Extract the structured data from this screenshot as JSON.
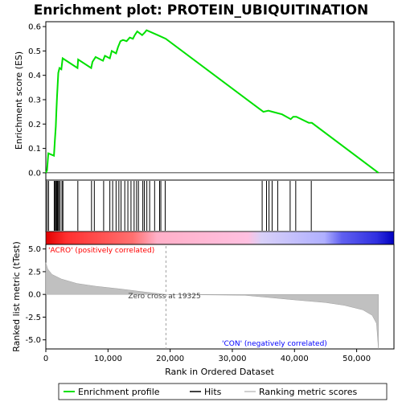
{
  "chart_data": {
    "type": "line",
    "title": "Enrichment plot: PROTEIN_UBIQUITINATION",
    "top_panel": {
      "ylabel": "Enrichment score (ES)",
      "ylim": [
        -0.03,
        0.62
      ],
      "yticks": [
        "0.0",
        "0.1",
        "0.2",
        "0.3",
        "0.4",
        "0.5",
        "0.6"
      ],
      "series": {
        "name": "Enrichment profile",
        "color": "#00e000",
        "points": [
          [
            0,
            0
          ],
          [
            200,
            0.01
          ],
          [
            400,
            0.08
          ],
          [
            1300,
            0.07
          ],
          [
            1450,
            0.13
          ],
          [
            1600,
            0.19
          ],
          [
            1700,
            0.25
          ],
          [
            1800,
            0.31
          ],
          [
            1900,
            0.36
          ],
          [
            2000,
            0.41
          ],
          [
            2200,
            0.43
          ],
          [
            2500,
            0.425
          ],
          [
            2700,
            0.47
          ],
          [
            5100,
            0.43
          ],
          [
            5200,
            0.465
          ],
          [
            7300,
            0.43
          ],
          [
            7500,
            0.455
          ],
          [
            8000,
            0.475
          ],
          [
            9200,
            0.46
          ],
          [
            9500,
            0.48
          ],
          [
            10300,
            0.47
          ],
          [
            10600,
            0.5
          ],
          [
            11300,
            0.49
          ],
          [
            11600,
            0.515
          ],
          [
            12000,
            0.54
          ],
          [
            12400,
            0.545
          ],
          [
            13000,
            0.54
          ],
          [
            13500,
            0.555
          ],
          [
            14000,
            0.55
          ],
          [
            14300,
            0.565
          ],
          [
            14700,
            0.58
          ],
          [
            15500,
            0.565
          ],
          [
            15900,
            0.575
          ],
          [
            16200,
            0.585
          ],
          [
            18000,
            0.565
          ],
          [
            19300,
            0.55
          ],
          [
            35000,
            0.25
          ],
          [
            35800,
            0.255
          ],
          [
            36500,
            0.25
          ],
          [
            38000,
            0.24
          ],
          [
            39400,
            0.22
          ],
          [
            39800,
            0.23
          ],
          [
            40300,
            0.23
          ],
          [
            42300,
            0.205
          ],
          [
            42800,
            0.205
          ],
          [
            53500,
            0
          ]
        ]
      }
    },
    "hits_panel": {
      "name": "Hits",
      "hit_ranks": [
        200,
        450,
        1350,
        1500,
        1650,
        1750,
        1850,
        1950,
        2100,
        2300,
        2600,
        2750,
        5150,
        7350,
        7800,
        9300,
        10300,
        10750,
        11300,
        11750,
        12100,
        12700,
        13200,
        13700,
        14200,
        14600,
        14900,
        15600,
        15850,
        16250,
        16700,
        17500,
        18300,
        18500,
        19200,
        34800,
        35500,
        35900,
        36400,
        37300,
        39300,
        40200,
        42700
      ]
    },
    "bottom_panel": {
      "ylabel": "Ranked list metric (tTest)",
      "ylim": [
        -6.0,
        5.5
      ],
      "yticks": [
        "5.0",
        "2.5",
        "0.0",
        "-2.5",
        "-5.0"
      ],
      "series": {
        "name": "Ranking metric scores",
        "color": "#c0c0c0",
        "points": [
          [
            0,
            3.5
          ],
          [
            300,
            2.8
          ],
          [
            1000,
            2.2
          ],
          [
            2500,
            1.7
          ],
          [
            5000,
            1.2
          ],
          [
            8000,
            0.9
          ],
          [
            12000,
            0.6
          ],
          [
            16000,
            0.25
          ],
          [
            19325,
            0
          ],
          [
            25000,
            -0.05
          ],
          [
            32000,
            -0.1
          ],
          [
            36000,
            -0.35
          ],
          [
            40000,
            -0.6
          ],
          [
            45000,
            -0.9
          ],
          [
            48000,
            -1.2
          ],
          [
            51000,
            -1.7
          ],
          [
            52500,
            -2.3
          ],
          [
            53200,
            -3.2
          ],
          [
            53500,
            -6.0
          ]
        ]
      },
      "zero_cross_label": "Zero cross at 19325",
      "zero_cross_rank": 19325,
      "pos_label": "'ACRO' (positively correlated)",
      "neg_label": "'CON' (negatively correlated)",
      "pos_color": "#ff0000",
      "neg_color": "#0000ff"
    },
    "xlabel": "Rank in Ordered Dataset",
    "xlim": [
      0,
      56000
    ],
    "xticks": [
      "0",
      "10,000",
      "20,000",
      "30,000",
      "40,000",
      "50,000"
    ],
    "legend": {
      "placement": "bottom",
      "entries": [
        "Enrichment profile",
        "Hits",
        "Ranking metric scores"
      ]
    }
  }
}
